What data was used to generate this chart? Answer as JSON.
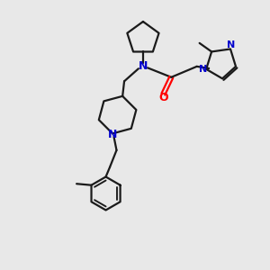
{
  "bg_color": "#e8e8e8",
  "bond_color": "#1a1a1a",
  "N_color": "#0000cd",
  "O_color": "#ff0000",
  "line_width": 1.6,
  "fig_size": [
    3.0,
    3.0
  ],
  "dpi": 100,
  "xlim": [
    0,
    10
  ],
  "ylim": [
    0,
    10
  ]
}
